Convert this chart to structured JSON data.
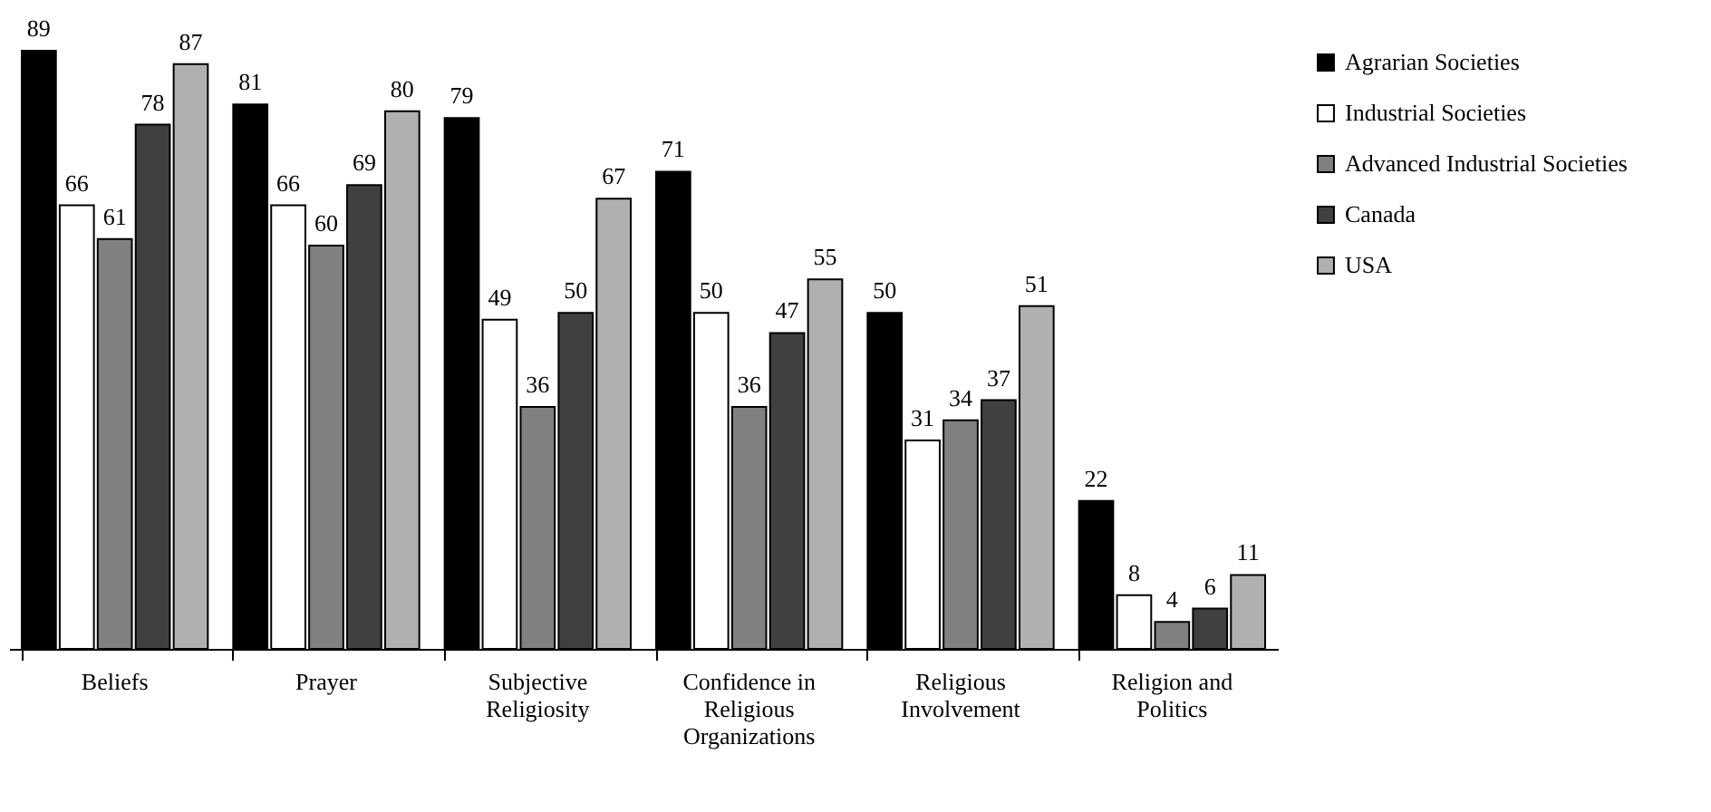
{
  "chart_data": {
    "type": "bar",
    "categories": [
      "Beliefs",
      "Prayer",
      "Subjective Religiosity",
      "Confidence in Religious Organizations",
      "Religious Involvement",
      "Religion and Politics"
    ],
    "series": [
      {
        "name": "Agrarian Societies",
        "color": "#000000",
        "values": [
          89,
          81,
          79,
          71,
          50,
          22
        ]
      },
      {
        "name": "Industrial Societies",
        "color": "#ffffff",
        "values": [
          66,
          66,
          49,
          50,
          31,
          8
        ]
      },
      {
        "name": "Advanced Industrial Societies",
        "color": "#808080",
        "values": [
          61,
          60,
          36,
          36,
          34,
          4
        ]
      },
      {
        "name": "Canada",
        "color": "#404040",
        "values": [
          78,
          69,
          50,
          47,
          37,
          6
        ]
      },
      {
        "name": "USA",
        "color": "#b0b0b0",
        "values": [
          87,
          80,
          67,
          55,
          51,
          11
        ]
      }
    ],
    "data_labels": true,
    "legend": "top right",
    "grid": false
  }
}
